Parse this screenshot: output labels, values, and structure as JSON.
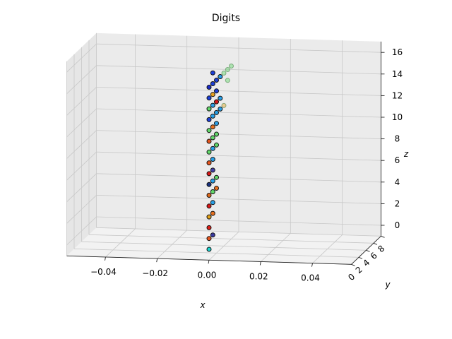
{
  "chart_data": {
    "type": "scatter",
    "projection": "3d",
    "title": "Digits",
    "xlabel": "x",
    "ylabel": "y",
    "zlabel": "z",
    "xlim": [
      -0.055,
      0.055
    ],
    "ylim": [
      0,
      8
    ],
    "zlim": [
      -1,
      17
    ],
    "xticks": [
      "−0.04",
      "−0.02",
      "0.00",
      "0.02",
      "0.04"
    ],
    "xtick_values": [
      -0.04,
      -0.02,
      0.0,
      0.02,
      0.04
    ],
    "yticks": [
      "0",
      "2",
      "4",
      "6",
      "8"
    ],
    "ytick_values": [
      0,
      2,
      4,
      6,
      8
    ],
    "zticks": [
      "0",
      "2",
      "4",
      "6",
      "8",
      "10",
      "12",
      "14",
      "16"
    ],
    "ztick_values": [
      0,
      2,
      4,
      6,
      8,
      10,
      12,
      14,
      16
    ],
    "grid": true,
    "colormap": "jet",
    "points": [
      {
        "x": 0,
        "y": 0,
        "z": 0,
        "c": "#1ad7d3"
      },
      {
        "x": 0,
        "y": 0,
        "z": 1,
        "c": "#e8561e"
      },
      {
        "x": 0,
        "y": 0,
        "z": 2,
        "c": "#e02018"
      },
      {
        "x": 0,
        "y": 0,
        "z": 3,
        "c": "#e3a21a"
      },
      {
        "x": 0,
        "y": 0,
        "z": 4,
        "c": "#d91717"
      },
      {
        "x": 0,
        "y": 0,
        "z": 5,
        "c": "#de6a1c"
      },
      {
        "x": 0,
        "y": 0,
        "z": 6,
        "c": "#17307e"
      },
      {
        "x": 0,
        "y": 0,
        "z": 7,
        "c": "#d91717"
      },
      {
        "x": 0,
        "y": 0,
        "z": 8,
        "c": "#e8561e"
      },
      {
        "x": 0,
        "y": 0,
        "z": 9,
        "c": "#62d86a"
      },
      {
        "x": 0,
        "y": 0,
        "z": 10,
        "c": "#e8561e"
      },
      {
        "x": 0,
        "y": 0,
        "z": 11,
        "c": "#62d86a"
      },
      {
        "x": 0,
        "y": 0,
        "z": 12,
        "c": "#1d40d8"
      },
      {
        "x": 0,
        "y": 0,
        "z": 13,
        "c": "#62d86a"
      },
      {
        "x": 0,
        "y": 0,
        "z": 14,
        "c": "#1d40d8"
      },
      {
        "x": 0,
        "y": 0,
        "z": 15,
        "c": "#1a2cc8"
      },
      {
        "x": 0,
        "y": 1,
        "z": 1,
        "c": "#3a3aa0"
      },
      {
        "x": 0,
        "y": 1,
        "z": 3,
        "c": "#e8701e"
      },
      {
        "x": 0,
        "y": 1,
        "z": 4,
        "c": "#28a0e8"
      },
      {
        "x": 0,
        "y": 1,
        "z": 5,
        "c": "#62d86a"
      },
      {
        "x": 0,
        "y": 1,
        "z": 6,
        "c": "#28a0e8"
      },
      {
        "x": 0,
        "y": 1,
        "z": 7,
        "c": "#4040a8"
      },
      {
        "x": 0,
        "y": 1,
        "z": 8,
        "c": "#28a0e8"
      },
      {
        "x": 0,
        "y": 1,
        "z": 9,
        "c": "#28a0e8"
      },
      {
        "x": 0,
        "y": 1,
        "z": 10,
        "c": "#62d86a"
      },
      {
        "x": 0,
        "y": 1,
        "z": 11,
        "c": "#e8701e"
      },
      {
        "x": 0,
        "y": 1,
        "z": 12,
        "c": "#28a0e8"
      },
      {
        "x": 0,
        "y": 1,
        "z": 13,
        "c": "#28a0e8"
      },
      {
        "x": 0,
        "y": 1,
        "z": 14,
        "c": "#e8a01e"
      },
      {
        "x": 0,
        "y": 1,
        "z": 15,
        "c": "#1d40d8"
      },
      {
        "x": 0,
        "y": 1,
        "z": 16,
        "c": "#1d40d8"
      },
      {
        "x": 0,
        "y": 2,
        "z": 5,
        "c": "#e8701e"
      },
      {
        "x": 0,
        "y": 2,
        "z": 6,
        "c": "#62d86a"
      },
      {
        "x": 0,
        "y": 2,
        "z": 9,
        "c": "#62d86a"
      },
      {
        "x": 0,
        "y": 2,
        "z": 10,
        "c": "#62d86a"
      },
      {
        "x": 0,
        "y": 2,
        "z": 11,
        "c": "#28a0e8"
      },
      {
        "x": 0,
        "y": 2,
        "z": 12,
        "c": "#28a0e8"
      },
      {
        "x": 0,
        "y": 2,
        "z": 13,
        "c": "#d91717"
      },
      {
        "x": 0,
        "y": 2,
        "z": 14,
        "c": "#1d40d8"
      },
      {
        "x": 0,
        "y": 2,
        "z": 15,
        "c": "#1d40d8"
      },
      {
        "x": 0,
        "y": 3,
        "z": 12,
        "c": "#28a0e8"
      },
      {
        "x": 0,
        "y": 3,
        "z": 13,
        "c": "#28a0e8"
      },
      {
        "x": 0,
        "y": 3,
        "z": 15,
        "c": "#28a0e8"
      },
      {
        "x": 0,
        "y": 4,
        "z": 12,
        "c": "#e8a01e"
      },
      {
        "x": 0,
        "y": 4,
        "z": 15,
        "c": "#62d86a"
      },
      {
        "x": 0,
        "y": 5,
        "z": 14,
        "c": "#62d86a"
      },
      {
        "x": 0,
        "y": 5,
        "z": 15,
        "c": "#62d86a"
      },
      {
        "x": 0,
        "y": 6,
        "z": 15,
        "c": "#62d86a"
      }
    ]
  }
}
